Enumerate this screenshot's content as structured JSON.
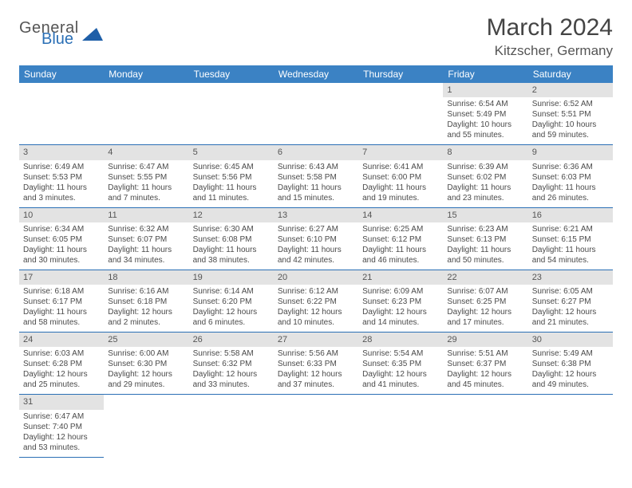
{
  "logo": {
    "text1": "General",
    "text2": "Blue",
    "shape_color": "#1f5fa8"
  },
  "title": "March 2024",
  "location": "Kitzscher, Germany",
  "colors": {
    "header_bg": "#3b82c4",
    "header_text": "#ffffff",
    "row_divider": "#2a6fb5",
    "daynum_bg": "#e3e3e3",
    "text": "#4a4a4a"
  },
  "day_headers": [
    "Sunday",
    "Monday",
    "Tuesday",
    "Wednesday",
    "Thursday",
    "Friday",
    "Saturday"
  ],
  "weeks": [
    [
      null,
      null,
      null,
      null,
      null,
      {
        "n": "1",
        "sr": "Sunrise: 6:54 AM",
        "ss": "Sunset: 5:49 PM",
        "d1": "Daylight: 10 hours",
        "d2": "and 55 minutes."
      },
      {
        "n": "2",
        "sr": "Sunrise: 6:52 AM",
        "ss": "Sunset: 5:51 PM",
        "d1": "Daylight: 10 hours",
        "d2": "and 59 minutes."
      }
    ],
    [
      {
        "n": "3",
        "sr": "Sunrise: 6:49 AM",
        "ss": "Sunset: 5:53 PM",
        "d1": "Daylight: 11 hours",
        "d2": "and 3 minutes."
      },
      {
        "n": "4",
        "sr": "Sunrise: 6:47 AM",
        "ss": "Sunset: 5:55 PM",
        "d1": "Daylight: 11 hours",
        "d2": "and 7 minutes."
      },
      {
        "n": "5",
        "sr": "Sunrise: 6:45 AM",
        "ss": "Sunset: 5:56 PM",
        "d1": "Daylight: 11 hours",
        "d2": "and 11 minutes."
      },
      {
        "n": "6",
        "sr": "Sunrise: 6:43 AM",
        "ss": "Sunset: 5:58 PM",
        "d1": "Daylight: 11 hours",
        "d2": "and 15 minutes."
      },
      {
        "n": "7",
        "sr": "Sunrise: 6:41 AM",
        "ss": "Sunset: 6:00 PM",
        "d1": "Daylight: 11 hours",
        "d2": "and 19 minutes."
      },
      {
        "n": "8",
        "sr": "Sunrise: 6:39 AM",
        "ss": "Sunset: 6:02 PM",
        "d1": "Daylight: 11 hours",
        "d2": "and 23 minutes."
      },
      {
        "n": "9",
        "sr": "Sunrise: 6:36 AM",
        "ss": "Sunset: 6:03 PM",
        "d1": "Daylight: 11 hours",
        "d2": "and 26 minutes."
      }
    ],
    [
      {
        "n": "10",
        "sr": "Sunrise: 6:34 AM",
        "ss": "Sunset: 6:05 PM",
        "d1": "Daylight: 11 hours",
        "d2": "and 30 minutes."
      },
      {
        "n": "11",
        "sr": "Sunrise: 6:32 AM",
        "ss": "Sunset: 6:07 PM",
        "d1": "Daylight: 11 hours",
        "d2": "and 34 minutes."
      },
      {
        "n": "12",
        "sr": "Sunrise: 6:30 AM",
        "ss": "Sunset: 6:08 PM",
        "d1": "Daylight: 11 hours",
        "d2": "and 38 minutes."
      },
      {
        "n": "13",
        "sr": "Sunrise: 6:27 AM",
        "ss": "Sunset: 6:10 PM",
        "d1": "Daylight: 11 hours",
        "d2": "and 42 minutes."
      },
      {
        "n": "14",
        "sr": "Sunrise: 6:25 AM",
        "ss": "Sunset: 6:12 PM",
        "d1": "Daylight: 11 hours",
        "d2": "and 46 minutes."
      },
      {
        "n": "15",
        "sr": "Sunrise: 6:23 AM",
        "ss": "Sunset: 6:13 PM",
        "d1": "Daylight: 11 hours",
        "d2": "and 50 minutes."
      },
      {
        "n": "16",
        "sr": "Sunrise: 6:21 AM",
        "ss": "Sunset: 6:15 PM",
        "d1": "Daylight: 11 hours",
        "d2": "and 54 minutes."
      }
    ],
    [
      {
        "n": "17",
        "sr": "Sunrise: 6:18 AM",
        "ss": "Sunset: 6:17 PM",
        "d1": "Daylight: 11 hours",
        "d2": "and 58 minutes."
      },
      {
        "n": "18",
        "sr": "Sunrise: 6:16 AM",
        "ss": "Sunset: 6:18 PM",
        "d1": "Daylight: 12 hours",
        "d2": "and 2 minutes."
      },
      {
        "n": "19",
        "sr": "Sunrise: 6:14 AM",
        "ss": "Sunset: 6:20 PM",
        "d1": "Daylight: 12 hours",
        "d2": "and 6 minutes."
      },
      {
        "n": "20",
        "sr": "Sunrise: 6:12 AM",
        "ss": "Sunset: 6:22 PM",
        "d1": "Daylight: 12 hours",
        "d2": "and 10 minutes."
      },
      {
        "n": "21",
        "sr": "Sunrise: 6:09 AM",
        "ss": "Sunset: 6:23 PM",
        "d1": "Daylight: 12 hours",
        "d2": "and 14 minutes."
      },
      {
        "n": "22",
        "sr": "Sunrise: 6:07 AM",
        "ss": "Sunset: 6:25 PM",
        "d1": "Daylight: 12 hours",
        "d2": "and 17 minutes."
      },
      {
        "n": "23",
        "sr": "Sunrise: 6:05 AM",
        "ss": "Sunset: 6:27 PM",
        "d1": "Daylight: 12 hours",
        "d2": "and 21 minutes."
      }
    ],
    [
      {
        "n": "24",
        "sr": "Sunrise: 6:03 AM",
        "ss": "Sunset: 6:28 PM",
        "d1": "Daylight: 12 hours",
        "d2": "and 25 minutes."
      },
      {
        "n": "25",
        "sr": "Sunrise: 6:00 AM",
        "ss": "Sunset: 6:30 PM",
        "d1": "Daylight: 12 hours",
        "d2": "and 29 minutes."
      },
      {
        "n": "26",
        "sr": "Sunrise: 5:58 AM",
        "ss": "Sunset: 6:32 PM",
        "d1": "Daylight: 12 hours",
        "d2": "and 33 minutes."
      },
      {
        "n": "27",
        "sr": "Sunrise: 5:56 AM",
        "ss": "Sunset: 6:33 PM",
        "d1": "Daylight: 12 hours",
        "d2": "and 37 minutes."
      },
      {
        "n": "28",
        "sr": "Sunrise: 5:54 AM",
        "ss": "Sunset: 6:35 PM",
        "d1": "Daylight: 12 hours",
        "d2": "and 41 minutes."
      },
      {
        "n": "29",
        "sr": "Sunrise: 5:51 AM",
        "ss": "Sunset: 6:37 PM",
        "d1": "Daylight: 12 hours",
        "d2": "and 45 minutes."
      },
      {
        "n": "30",
        "sr": "Sunrise: 5:49 AM",
        "ss": "Sunset: 6:38 PM",
        "d1": "Daylight: 12 hours",
        "d2": "and 49 minutes."
      }
    ],
    [
      {
        "n": "31",
        "sr": "Sunrise: 6:47 AM",
        "ss": "Sunset: 7:40 PM",
        "d1": "Daylight: 12 hours",
        "d2": "and 53 minutes."
      },
      null,
      null,
      null,
      null,
      null,
      null
    ]
  ]
}
